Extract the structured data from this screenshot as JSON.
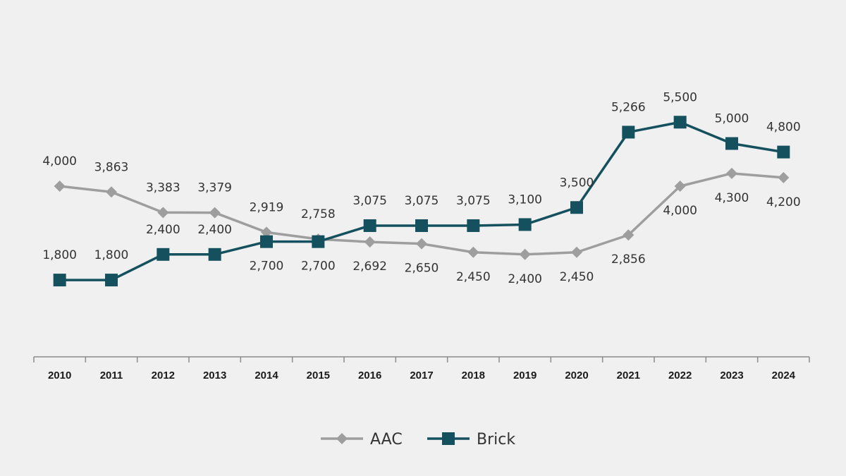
{
  "chart_data": {
    "type": "line",
    "categories": [
      "2010",
      "2011",
      "2012",
      "2013",
      "2014",
      "2015",
      "2016",
      "2017",
      "2018",
      "2019",
      "2020",
      "2021",
      "2022",
      "2023",
      "2024"
    ],
    "series": [
      {
        "name": "AAC",
        "color": "#9e9e9e",
        "marker": "diamond",
        "values": [
          4000,
          3863,
          3383,
          3379,
          2919,
          2758,
          2692,
          2650,
          2450,
          2400,
          2450,
          2856,
          4000,
          4300,
          4200
        ],
        "labels": [
          "4,000",
          "3,863",
          "3,383",
          "3,379",
          "2,919",
          "2,758",
          "2,692",
          "2,650",
          "2,450",
          "2,400",
          "2,450",
          "2,856",
          "4,000",
          "4,300",
          "4,200"
        ],
        "label_pos": [
          "above",
          "above",
          "above",
          "above",
          "above",
          "above",
          "below",
          "below",
          "below",
          "below",
          "below",
          "below",
          "below",
          "below",
          "below"
        ]
      },
      {
        "name": "Brick",
        "color": "#14505e",
        "marker": "square",
        "values": [
          1800,
          1800,
          2400,
          2400,
          2700,
          2700,
          3075,
          3075,
          3075,
          3100,
          3500,
          5266,
          5500,
          5000,
          4800
        ],
        "labels": [
          "1,800",
          "1,800",
          "2,400",
          "2,400",
          "2,700",
          "2,700",
          "3,075",
          "3,075",
          "3,075",
          "3,100",
          "3,500",
          "5,266",
          "5,500",
          "5,000",
          "4,800"
        ],
        "label_pos": [
          "above",
          "above",
          "above",
          "above",
          "below",
          "below",
          "above",
          "above",
          "above",
          "above",
          "above",
          "above",
          "above",
          "above",
          "above"
        ]
      }
    ],
    "title": "",
    "xlabel": "",
    "ylabel": "",
    "ylim": [
      0,
      6000
    ],
    "grid": false,
    "legend": "bottom-center",
    "axis_color": "#8c8c8c"
  }
}
